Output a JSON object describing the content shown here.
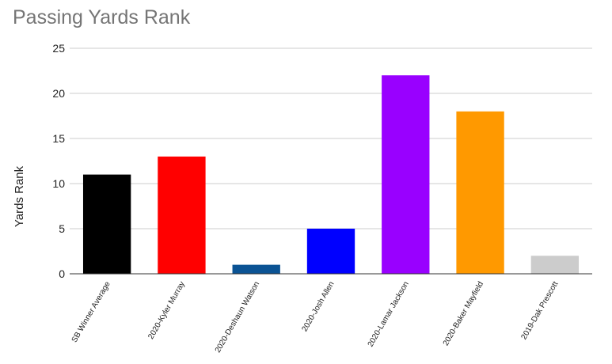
{
  "chart_data": {
    "type": "bar",
    "title": "Passing Yards Rank",
    "ylabel": "Yards Rank",
    "xlabel": "",
    "ylim": [
      0,
      25
    ],
    "yticks": [
      0,
      5,
      10,
      15,
      20,
      25
    ],
    "grid": true,
    "legend": "none",
    "categories": [
      "SB Winner Average",
      "2020-Kyler Murray",
      "2020-Deshaun Watson",
      "2020-Josh Allen",
      "2020-Lamar Jackson",
      "2020-Baker Mayfield",
      "2019-Dak Prescott"
    ],
    "values": [
      11,
      13,
      1,
      5,
      22,
      18,
      2
    ],
    "colors": [
      "#000000",
      "#ff0000",
      "#0b5394",
      "#0000ff",
      "#9900ff",
      "#ff9900",
      "#cccccc"
    ]
  }
}
